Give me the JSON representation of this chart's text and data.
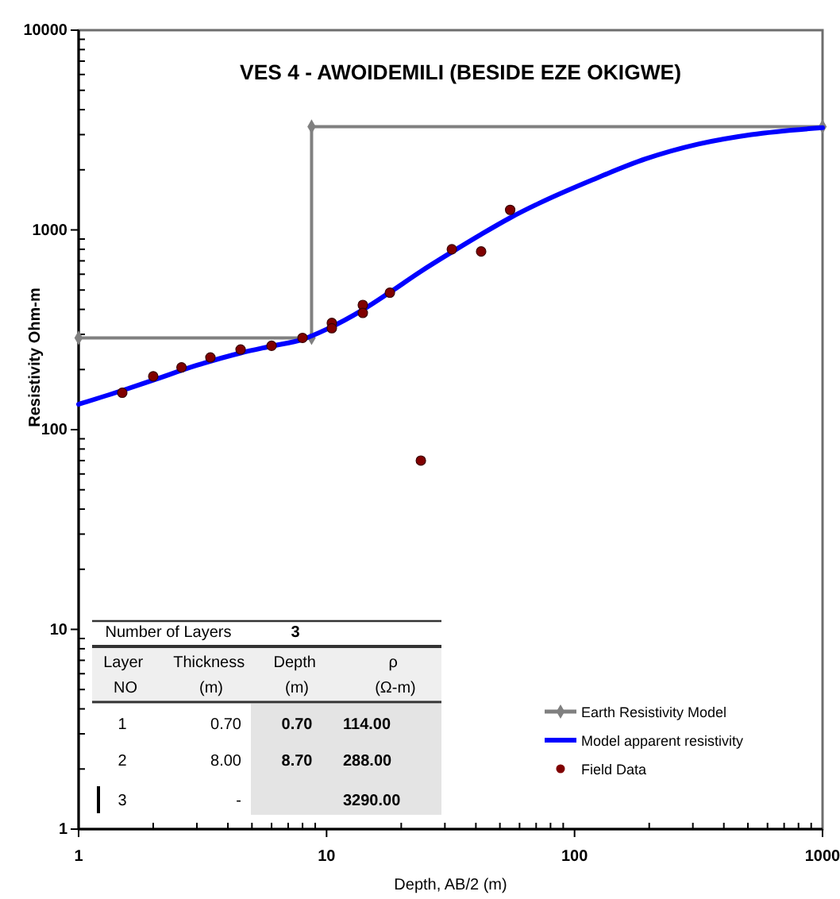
{
  "chart_data": {
    "type": "line",
    "title": "VES 4 - AWOIDEMILI (BESIDE EZE OKIGWE)",
    "xlabel": "Depth, AB/2 (m)",
    "ylabel": "Resistivity Ohm-m",
    "log": "xy",
    "xlim": [
      1,
      1000
    ],
    "ylim": [
      1,
      10000
    ],
    "xticks": [
      1,
      {
        "value": 2,
        "label": null
      },
      {
        "value": 3,
        "label": null
      },
      {
        "value": 4,
        "label": null
      },
      {
        "value": 5,
        "label": null
      },
      {
        "value": 6,
        "label": null
      },
      {
        "value": 7,
        "label": null
      },
      {
        "value": 8,
        "label": null
      },
      {
        "value": 9,
        "label": null
      },
      10,
      {
        "value": 20,
        "label": null
      },
      {
        "value": 30,
        "label": null
      },
      {
        "value": 40,
        "label": null
      },
      {
        "value": 50,
        "label": null
      },
      {
        "value": 60,
        "label": null
      },
      {
        "value": 70,
        "label": null
      },
      {
        "value": 80,
        "label": null
      },
      {
        "value": 90,
        "label": null
      },
      100,
      {
        "value": 200,
        "label": null
      },
      {
        "value": 300,
        "label": null
      },
      {
        "value": 400,
        "label": null
      },
      {
        "value": 500,
        "label": null
      },
      {
        "value": 600,
        "label": null
      },
      {
        "value": 700,
        "label": null
      },
      {
        "value": 800,
        "label": null
      },
      {
        "value": 900,
        "label": null
      },
      1000
    ],
    "yticks": [
      1,
      {
        "value": 2,
        "label": null
      },
      {
        "value": 3,
        "label": null
      },
      {
        "value": 4,
        "label": null
      },
      {
        "value": 5,
        "label": null
      },
      {
        "value": 6,
        "label": null
      },
      {
        "value": 7,
        "label": null
      },
      {
        "value": 8,
        "label": null
      },
      {
        "value": 9,
        "label": null
      },
      10,
      {
        "value": 20,
        "label": null
      },
      {
        "value": 30,
        "label": null
      },
      {
        "value": 40,
        "label": null
      },
      {
        "value": 50,
        "label": null
      },
      {
        "value": 60,
        "label": null
      },
      {
        "value": 70,
        "label": null
      },
      {
        "value": 80,
        "label": null
      },
      {
        "value": 90,
        "label": null
      },
      100,
      {
        "value": 200,
        "label": null
      },
      {
        "value": 300,
        "label": null
      },
      {
        "value": 400,
        "label": null
      },
      {
        "value": 500,
        "label": null
      },
      {
        "value": 600,
        "label": null
      },
      {
        "value": 700,
        "label": null
      },
      {
        "value": 800,
        "label": null
      },
      {
        "value": 900,
        "label": null
      },
      1000,
      {
        "value": 2000,
        "label": null
      },
      {
        "value": 3000,
        "label": null
      },
      {
        "value": 4000,
        "label": null
      },
      {
        "value": 5000,
        "label": null
      },
      {
        "value": 6000,
        "label": null
      },
      {
        "value": 7000,
        "label": null
      },
      {
        "value": 8000,
        "label": null
      },
      {
        "value": 9000,
        "label": null
      },
      10000
    ],
    "grid": false,
    "legend": "bottom right",
    "series": [
      {
        "name": "Earth Resistivity Model",
        "color": "#808080",
        "marker": "diamond",
        "x": [
          1,
          8.7,
          8.7,
          1000
        ],
        "values": [
          288,
          288,
          3290,
          3290
        ]
      },
      {
        "name": "Model apparent resistivity",
        "color": "#0000ff",
        "marker": "none",
        "x": [
          1,
          1.5,
          2,
          3,
          4.5,
          6,
          8,
          10,
          14,
          18,
          24,
          32,
          42,
          55,
          72,
          118,
          194,
          316,
          517,
          1000
        ],
        "values": [
          134,
          157,
          177,
          210,
          242,
          262,
          283,
          318,
          398,
          487,
          620,
          775,
          950,
          1150,
          1360,
          1780,
          2270,
          2690,
          3000,
          3250
        ]
      },
      {
        "name": "Field Data",
        "type": "scatter",
        "color": "#800000",
        "marker": "circle",
        "x": [
          1.5,
          2,
          2.6,
          3.4,
          4.5,
          6,
          8,
          10.5,
          10.5,
          14,
          14,
          18,
          24,
          32,
          42,
          55
        ],
        "values": [
          153,
          185,
          205,
          230,
          252,
          263,
          288,
          342,
          322,
          421,
          384,
          485,
          70,
          800,
          780,
          1260
        ]
      }
    ],
    "annotations": [
      "Number of Layers",
      "3",
      "Layer NO",
      "Thickness (m)",
      "Depth (m)",
      "ρ (Ω-m)",
      "1",
      "0.70",
      "0.70",
      "114.00",
      "2",
      "8.00",
      "8.70",
      "288.00",
      "3",
      "-",
      "3290.00"
    ]
  }
}
